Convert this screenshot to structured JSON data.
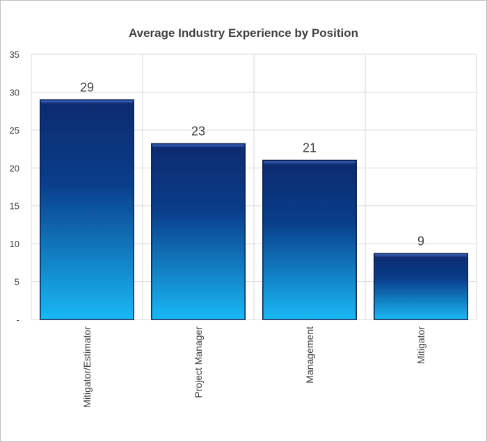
{
  "chart_data": {
    "type": "bar",
    "title": "Average Industry Experience by Position",
    "categories": [
      "Mitigator/Estimator",
      "Project Manager",
      "Management",
      "Mitigator"
    ],
    "values": [
      29,
      23.2,
      21,
      8.7
    ],
    "data_labels": [
      "29",
      "23",
      "21",
      "9"
    ],
    "xlabel": "",
    "ylabel": "",
    "ylim": [
      0,
      35
    ],
    "yticks": [
      0,
      5,
      10,
      15,
      20,
      25,
      30,
      35
    ],
    "ytick_labels": [
      "-",
      "5",
      "10",
      "15",
      "20",
      "25",
      "30",
      "35"
    ],
    "grid": true,
    "legend": "none",
    "colors": {
      "bar_top": "#0d2a6e",
      "bar_mid": "#0a3d8a",
      "bar_bottom": "#19b8f5",
      "bar_outline": "#071d4a",
      "grid": "#d9d9d9",
      "text": "#404040"
    }
  }
}
